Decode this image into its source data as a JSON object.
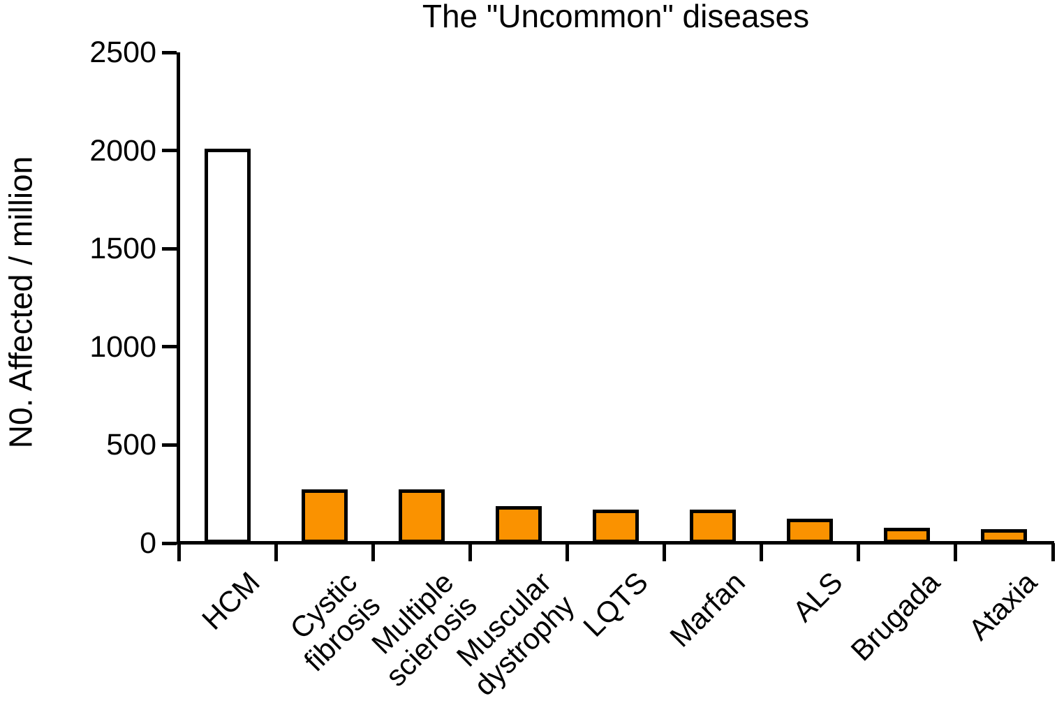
{
  "chart_data": {
    "type": "bar",
    "title": "The \"Uncommon\" diseases",
    "xlabel": "",
    "ylabel": "N0. Affected / million",
    "ylim": [
      0,
      2500
    ],
    "yticks": [
      0,
      500,
      1000,
      1500,
      2000,
      2500
    ],
    "grid": false,
    "legend": false,
    "categories": [
      "HCM",
      "Cystic\nfibrosis",
      "Multiple\nscierosis",
      "Muscular\ndystrophy",
      "LQTS",
      "Marfan",
      "ALS",
      "Brugada",
      "Ataxia"
    ],
    "values": [
      2010,
      275,
      275,
      190,
      170,
      170,
      125,
      80,
      70
    ],
    "bar_fill_colors": [
      "#FFFFFF",
      "#FA9200",
      "#FA9200",
      "#FA9200",
      "#FA9200",
      "#FA9200",
      "#FA9200",
      "#FA9200",
      "#FA9200"
    ],
    "bar_border_color": "#000000",
    "axis_color": "#000000",
    "background_color": "#FFFFFF"
  }
}
